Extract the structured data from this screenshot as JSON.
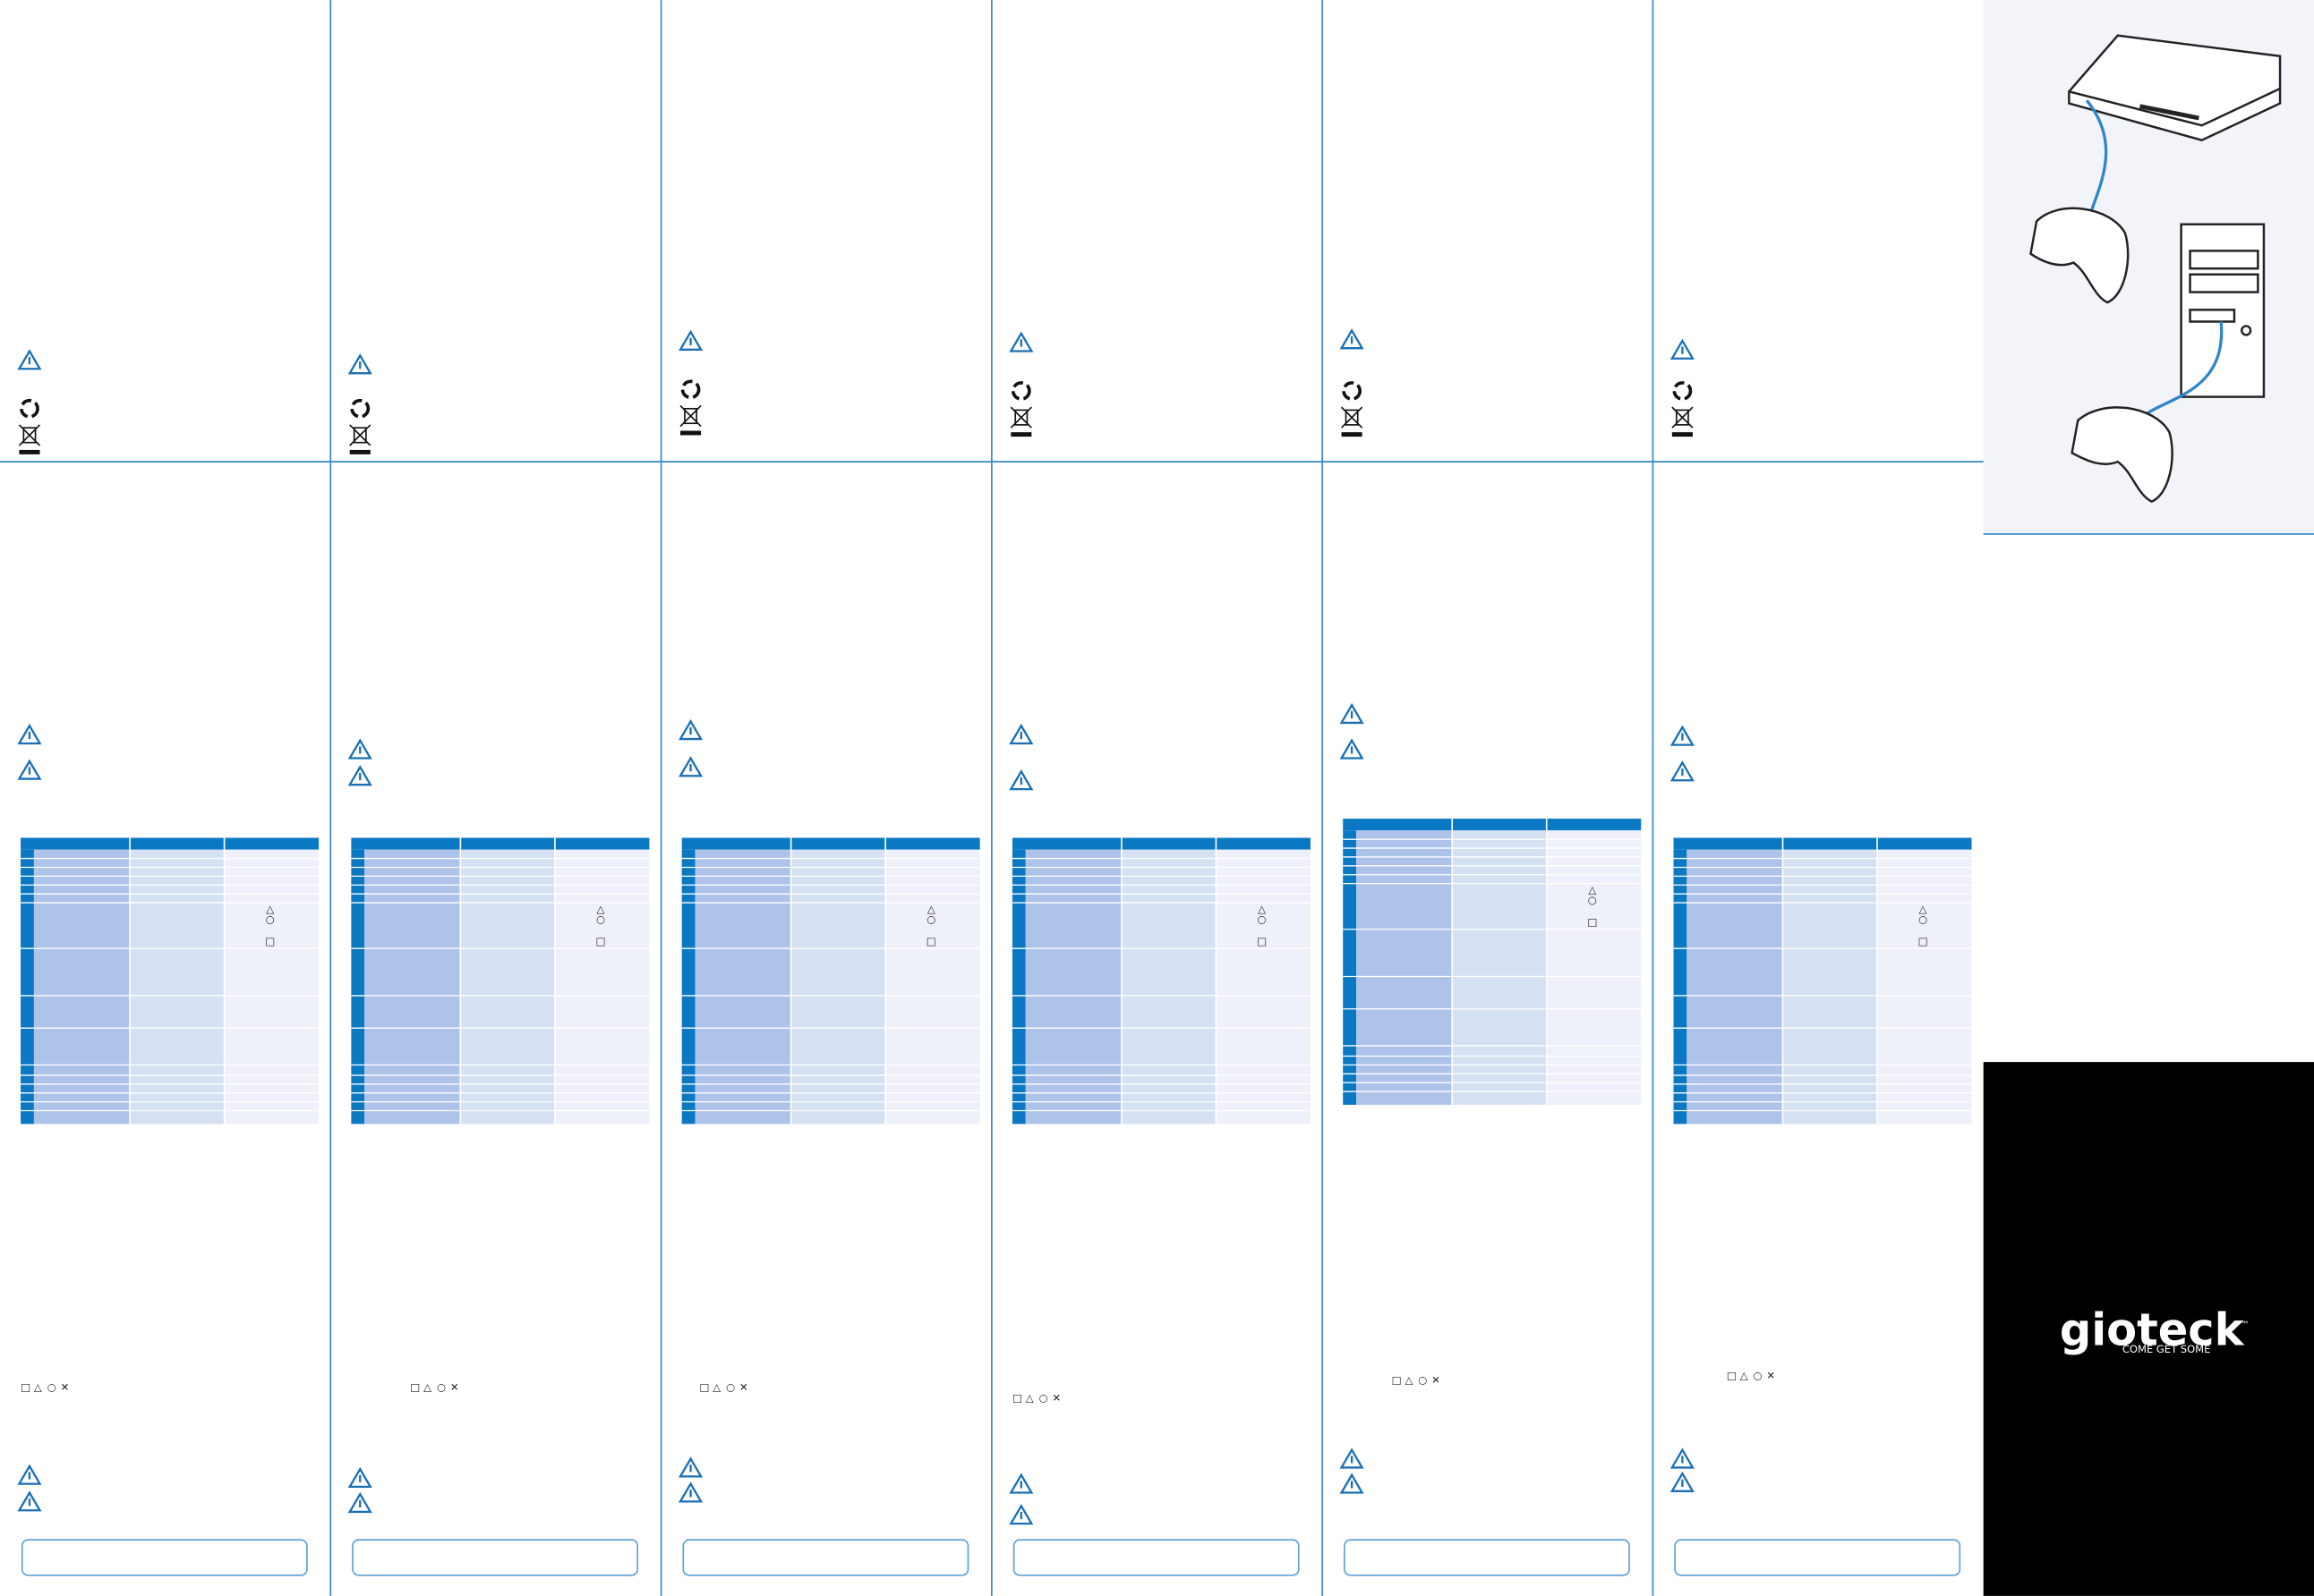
{
  "brand": {
    "name": "gioteck",
    "tagline": "COME GET SOME",
    "trademark": "™"
  },
  "button_symbols": [
    "□",
    "△",
    "○",
    "✕"
  ],
  "table_symbols": [
    "△",
    "○",
    "□"
  ]
}
